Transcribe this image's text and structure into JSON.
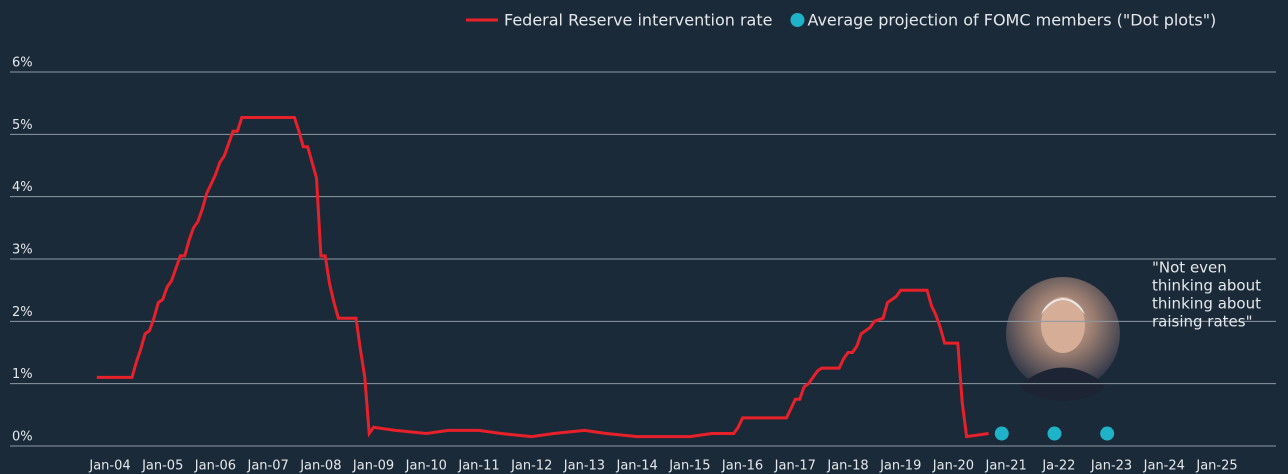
{
  "chart_data": {
    "type": "line",
    "series": [
      {
        "name": "Federal Reserve intervention rate",
        "color": "#e8202a",
        "style": "line",
        "x": [
          "Oct-03",
          "Jun-04",
          "Jul-04",
          "Aug-04",
          "Sep-04",
          "Oct-04",
          "Nov-04",
          "Dec-04",
          "Jan-05",
          "Feb-05",
          "Mar-05",
          "Apr-05",
          "May-05",
          "Jun-05",
          "Jul-05",
          "Aug-05",
          "Sep-05",
          "Oct-05",
          "Nov-05",
          "Dec-05",
          "Jan-06",
          "Feb-06",
          "Mar-06",
          "Apr-06",
          "May-06",
          "Jun-06",
          "Jul-06",
          "Jul-07",
          "Aug-07",
          "Sep-07",
          "Oct-07",
          "Nov-07",
          "Dec-07",
          "Jan-08",
          "Feb-08",
          "Mar-08",
          "Apr-08",
          "May-08",
          "Sep-08",
          "Oct-08",
          "Nov-08",
          "Dec-08",
          "Jan-09",
          "Jun-09",
          "Jan-10",
          "Jun-10",
          "Jan-11",
          "Jun-11",
          "Jan-12",
          "Jun-12",
          "Jan-13",
          "Jun-13",
          "Jan-14",
          "Jun-14",
          "Jan-15",
          "Jun-15",
          "Nov-15",
          "Dec-15",
          "Jan-16",
          "Nov-16",
          "Dec-16",
          "Jan-17",
          "Feb-17",
          "Mar-17",
          "Apr-17",
          "Jun-17",
          "Jul-17",
          "Nov-17",
          "Dec-17",
          "Jan-18",
          "Feb-18",
          "Mar-18",
          "Apr-18",
          "Jun-18",
          "Jul-18",
          "Sep-18",
          "Oct-18",
          "Dec-18",
          "Jan-19",
          "Jul-19",
          "Aug-19",
          "Sep-19",
          "Oct-19",
          "Nov-19",
          "Feb-20",
          "Mar-20",
          "Apr-20",
          "Sep-20"
        ],
        "values": [
          1.1,
          1.1,
          1.35,
          1.55,
          1.8,
          1.85,
          2.05,
          2.3,
          2.35,
          2.55,
          2.65,
          2.85,
          3.05,
          3.05,
          3.3,
          3.5,
          3.6,
          3.8,
          4.05,
          4.2,
          4.35,
          4.55,
          4.65,
          4.85,
          5.05,
          5.05,
          5.27,
          5.27,
          5.05,
          4.8,
          4.8,
          4.55,
          4.3,
          3.05,
          3.05,
          2.6,
          2.3,
          2.05,
          2.05,
          1.55,
          1.1,
          0.2,
          0.3,
          0.25,
          0.2,
          0.25,
          0.25,
          0.2,
          0.15,
          0.2,
          0.25,
          0.2,
          0.15,
          0.15,
          0.15,
          0.2,
          0.2,
          0.3,
          0.45,
          0.45,
          0.6,
          0.75,
          0.75,
          0.95,
          1.0,
          1.2,
          1.25,
          1.25,
          1.4,
          1.5,
          1.5,
          1.6,
          1.8,
          1.9,
          2.0,
          2.05,
          2.3,
          2.4,
          2.5,
          2.5,
          2.25,
          2.1,
          1.9,
          1.65,
          1.65,
          0.7,
          0.15,
          0.2
        ]
      },
      {
        "name": "Average projection of FOMC members (\"Dot plots\")",
        "color": "#1fb3c9",
        "style": "dot",
        "x": [
          "Dec-20",
          "Dec-21",
          "Dec-22"
        ],
        "values": [
          0.2,
          0.2,
          0.2
        ]
      }
    ],
    "ylim": [
      0,
      6
    ],
    "yticks": [
      {
        "value": 0,
        "label": "0%"
      },
      {
        "value": 1,
        "label": "1%"
      },
      {
        "value": 2,
        "label": "2%"
      },
      {
        "value": 3,
        "label": "3%"
      },
      {
        "value": 4,
        "label": "4%"
      },
      {
        "value": 5,
        "label": "5%"
      },
      {
        "value": 6,
        "label": "6%"
      }
    ],
    "xticks": [
      "Jan-04",
      "Jan-05",
      "Jan-06",
      "Jan-07",
      "Jan-08",
      "Jan-09",
      "Jan-10",
      "Jan-11",
      "Jan-12",
      "Jan-13",
      "Jan-14",
      "Jan-15",
      "Jan-16",
      "Jan-17",
      "Jan-18",
      "Jan-19",
      "Jan-20",
      "Jan-21",
      {
        "value": "Jan-22",
        "label": "Ja-22"
      },
      "Jan-23",
      "Jan-24",
      "Jan-25"
    ],
    "grid": true,
    "annotation": [
      "\"Not even",
      "thinking about",
      "thinking about",
      "raising rates\""
    ]
  }
}
